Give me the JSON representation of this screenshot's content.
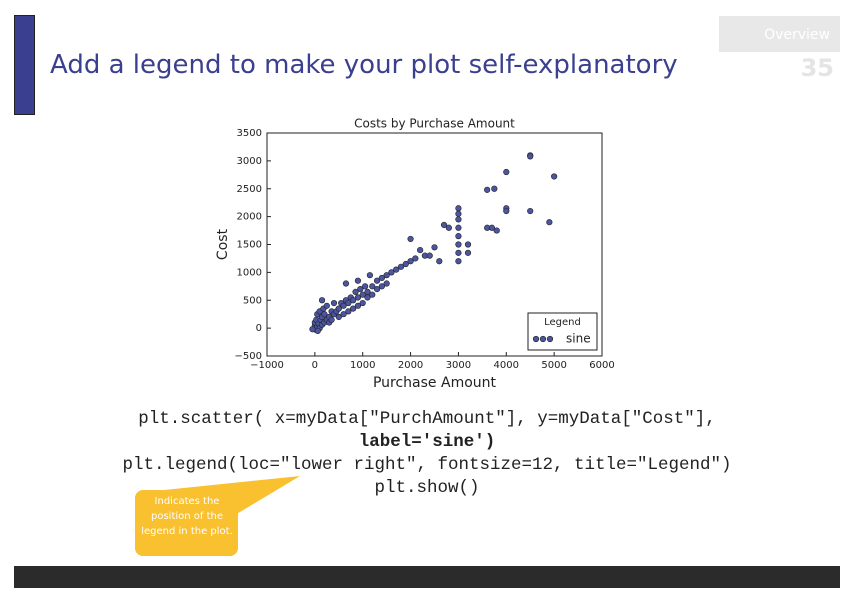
{
  "header": {
    "title": "Add a legend to make your plot self-explanatory",
    "section": "Overview",
    "page_number": "35"
  },
  "chart_data": {
    "type": "scatter",
    "title": "Costs by Purchase Amount",
    "x_label": "Purchase Amount",
    "y_label": "Cost",
    "xlim": [
      -1000,
      6000
    ],
    "ylim": [
      -500,
      3500
    ],
    "xticks": [
      {
        "value": -1000,
        "label": "−1000"
      },
      0,
      1000,
      2000,
      3000,
      4000,
      5000,
      6000
    ],
    "yticks": [
      {
        "value": -500,
        "label": "−500"
      },
      0,
      500,
      1000,
      1500,
      2000,
      2500,
      3000,
      3500
    ],
    "legend": {
      "title": "Legend",
      "position": "lower right"
    },
    "series": [
      {
        "name": "sine",
        "color": "#4b55a0",
        "x": [
          0,
          0,
          0,
          20,
          30,
          50,
          50,
          80,
          100,
          100,
          120,
          150,
          150,
          180,
          200,
          200,
          250,
          250,
          300,
          300,
          350,
          350,
          400,
          400,
          450,
          500,
          500,
          550,
          600,
          600,
          650,
          700,
          700,
          750,
          800,
          800,
          850,
          900,
          900,
          950,
          1000,
          1000,
          1050,
          1100,
          1100,
          1200,
          1200,
          1300,
          1300,
          1400,
          1400,
          1500,
          1500,
          1600,
          1700,
          1800,
          1900,
          2000,
          2000,
          2100,
          2200,
          2300,
          2400,
          2500,
          2600,
          2700,
          2800,
          3000,
          3000,
          3000,
          3000,
          3000,
          3000,
          3000,
          3000,
          3200,
          3200,
          3600,
          3700,
          3750,
          3600,
          3800,
          4000,
          4000,
          4000,
          4500,
          4500,
          4500,
          4900,
          5000,
          -50,
          60,
          150,
          650,
          900,
          1150
        ],
        "y": [
          0,
          50,
          100,
          -30,
          150,
          20,
          250,
          80,
          0,
          300,
          150,
          60,
          200,
          350,
          100,
          250,
          150,
          400,
          200,
          100,
          300,
          150,
          250,
          450,
          300,
          350,
          200,
          450,
          400,
          250,
          500,
          450,
          300,
          550,
          500,
          350,
          650,
          550,
          400,
          700,
          600,
          450,
          750,
          650,
          550,
          750,
          600,
          850,
          700,
          900,
          750,
          950,
          800,
          1000,
          1050,
          1100,
          1150,
          1600,
          1200,
          1250,
          1400,
          1300,
          1300,
          1450,
          1200,
          1850,
          1800,
          2150,
          2050,
          1950,
          1800,
          1650,
          1500,
          1350,
          1200,
          1500,
          1350,
          1800,
          1800,
          2500,
          2480,
          1750,
          2800,
          2150,
          2100,
          3100,
          3080,
          2100,
          1900,
          2720,
          -20,
          -50,
          500,
          800,
          850,
          950
        ]
      }
    ]
  },
  "code": {
    "lines": [
      "plt.scatter( x=myData[\"PurchAmount\"], y=myData[\"Cost\"],",
      "label='sine')",
      "plt.legend(loc=\"lower right\", fontsize=12, title=\"Legend\")",
      "plt.show()"
    ]
  },
  "callout": {
    "text": "Indicates the position of the legend in the plot."
  }
}
